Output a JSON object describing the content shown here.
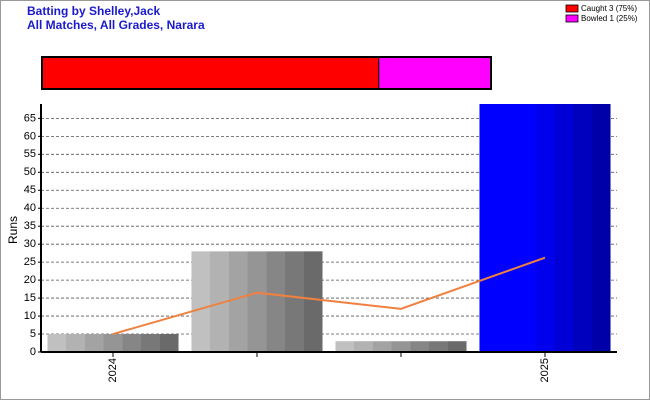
{
  "chart_data": [
    {
      "type": "proportion",
      "series": [
        {
          "name": "Caught 3 (75%)",
          "color": "#ff0000",
          "values": [
            3
          ]
        },
        {
          "name": "Bowled 1 (25%)",
          "color": "#ff00ff",
          "values": [
            1
          ]
        }
      ]
    },
    {
      "type": "bar",
      "title": "Batting by Shelley,Jack",
      "subtitle": "All Matches, All Grades, Narara",
      "y_label": "Runs",
      "categories": [
        "2024",
        null,
        null,
        "2025"
      ],
      "values": [
        5,
        28,
        3,
        69
      ],
      "colors": [
        "#a0a0a0",
        "#a0a0a0",
        "#a0a0a0",
        "#0000ff"
      ],
      "line_values": [
        5,
        16.5,
        12,
        26.25
      ],
      "line_color": "#f08040",
      "ylim": [
        0,
        69
      ],
      "yticks": [
        0,
        5,
        10,
        15,
        20,
        25,
        30,
        35,
        40,
        45,
        50,
        55,
        60,
        65
      ],
      "grid": true
    }
  ]
}
